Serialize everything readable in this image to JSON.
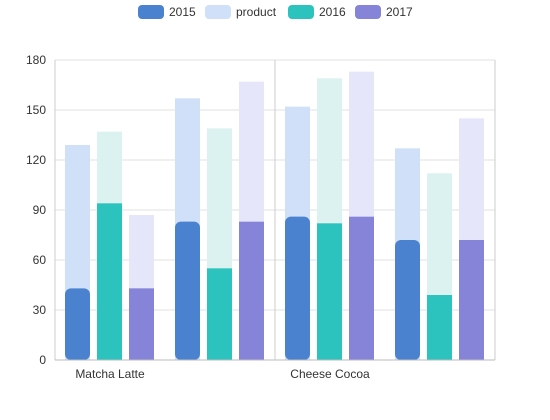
{
  "chart_data": {
    "type": "bar",
    "legend": {
      "position": "top-center",
      "items": [
        {
          "name": "2015",
          "color": "#4a82d0"
        },
        {
          "name": "product",
          "color": "#cfe0f8"
        },
        {
          "name": "2016",
          "color": "#2cc3bf"
        },
        {
          "name": "2017",
          "color": "#8584d8"
        }
      ]
    },
    "x_tick_labels": [
      "Matcha Latte",
      "Cheese Cocoa"
    ],
    "yticks": [
      "0",
      "30",
      "60",
      "90",
      "120",
      "150",
      "180"
    ],
    "ylim": [
      0,
      180
    ],
    "grid": true,
    "groups": 4,
    "series": [
      {
        "name": "2015",
        "color": "#4a82d0",
        "bg_color": "#cfe0f8",
        "values": [
          43,
          83,
          86,
          72
        ],
        "bg_values": [
          129,
          157,
          152,
          127
        ]
      },
      {
        "name": "2016",
        "color": "#2cc3bf",
        "bg_color": "#dbf2f0",
        "values": [
          94,
          55,
          82,
          39
        ],
        "bg_values": [
          137,
          139,
          169,
          112
        ]
      },
      {
        "name": "2017",
        "color": "#8584d8",
        "bg_color": "#e6e6fb",
        "values": [
          43,
          83,
          86,
          72
        ],
        "bg_values": [
          87,
          167,
          173,
          145
        ]
      }
    ]
  }
}
